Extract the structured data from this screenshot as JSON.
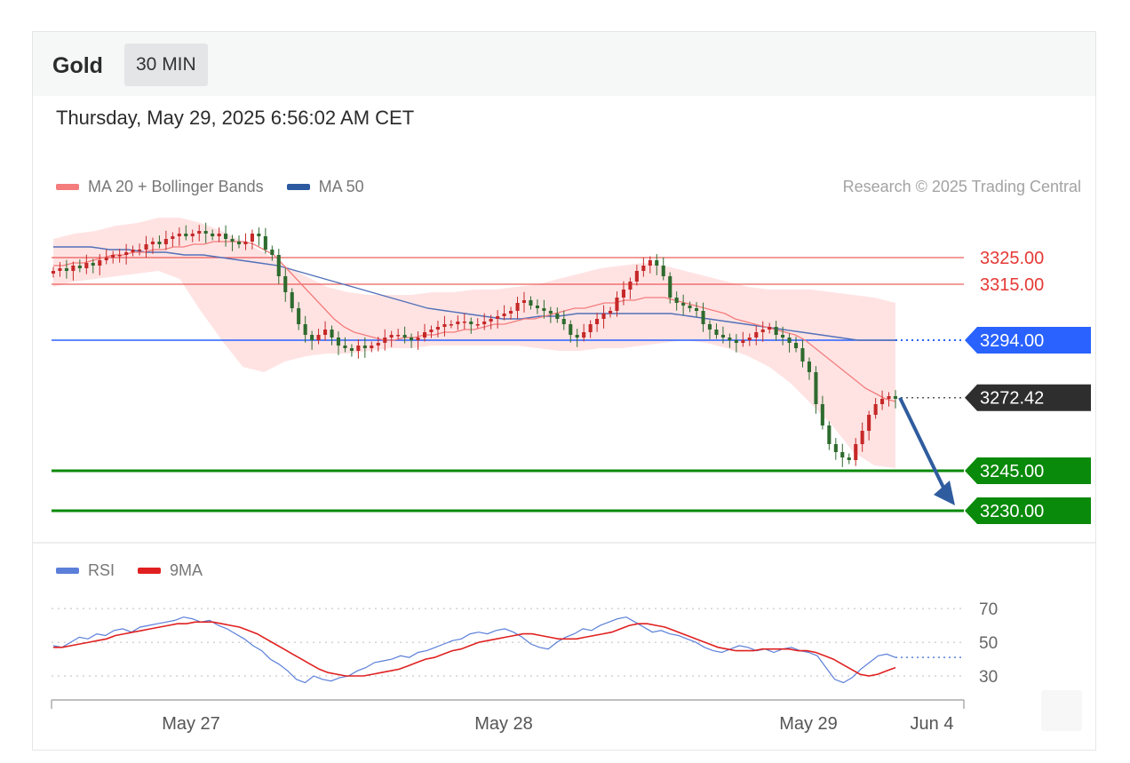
{
  "header": {
    "instrument": "Gold",
    "timeframe": "30 MIN"
  },
  "timestamp": "Thursday, May 29, 2025 6:56:02 AM CET",
  "legend": {
    "items": [
      {
        "label": "MA 20 + Bollinger Bands",
        "color": "#f47c7c"
      },
      {
        "label": "MA 50",
        "color": "#2c5aa0"
      }
    ]
  },
  "credit": "Research © 2025 Trading Central",
  "rsi_legend": {
    "items": [
      {
        "label": "RSI",
        "color": "#5b7fd8"
      },
      {
        "label": "9MA",
        "color": "#e02020"
      }
    ]
  },
  "colors": {
    "resistance": "#e53935",
    "pivot": "#2962ff",
    "support": "#0a8a0a",
    "last_price": "#2e2e2e",
    "bollinger_fill": "#ffd9d9",
    "ma20": "#f47c7c",
    "ma50": "#5270b8",
    "arrow": "#2f5c9e",
    "candle_up": "#c62828",
    "candle_down": "#2e6b2e"
  },
  "chart_data": [
    {
      "type": "candlestick",
      "instrument": "Gold",
      "timeframe": "30 MIN",
      "ylim": [
        3235,
        3340
      ],
      "x_tick_labels": [
        "May 27",
        "May 28",
        "May 29",
        "Jun 4"
      ],
      "levels": [
        {
          "label": "3325.00",
          "value": 3325.0,
          "kind": "resistance"
        },
        {
          "label": "3315.00",
          "value": 3315.0,
          "kind": "resistance"
        },
        {
          "label": "3294.00",
          "value": 3294.0,
          "kind": "pivot"
        },
        {
          "label": "3272.42",
          "value": 3272.42,
          "kind": "last"
        },
        {
          "label": "3245.00",
          "value": 3245.0,
          "kind": "support"
        },
        {
          "label": "3230.00",
          "value": 3230.0,
          "kind": "support"
        }
      ],
      "target_arrow": {
        "from": 3272.42,
        "to": 3232
      },
      "close": [
        3320,
        3321,
        3320,
        3322,
        3321,
        3323,
        3322,
        3324,
        3325,
        3326,
        3326,
        3327,
        3328,
        3328,
        3330,
        3331,
        3330,
        3332,
        3333,
        3334,
        3333,
        3334,
        3335,
        3334,
        3333,
        3334,
        3332,
        3331,
        3330,
        3331,
        3334,
        3333,
        3328,
        3326,
        3318,
        3312,
        3306,
        3300,
        3296,
        3294,
        3296,
        3298,
        3295,
        3292,
        3291,
        3290,
        3292,
        3291,
        3292,
        3293,
        3295,
        3296,
        3296,
        3295,
        3294,
        3295,
        3297,
        3298,
        3299,
        3300,
        3300,
        3301,
        3301,
        3300,
        3300,
        3301,
        3302,
        3303,
        3304,
        3305,
        3308,
        3309,
        3307,
        3306,
        3305,
        3304,
        3302,
        3300,
        3296,
        3295,
        3297,
        3300,
        3302,
        3304,
        3305,
        3310,
        3313,
        3316,
        3320,
        3322,
        3324,
        3322,
        3318,
        3310,
        3308,
        3307,
        3306,
        3305,
        3300,
        3298,
        3296,
        3295,
        3294,
        3293,
        3294,
        3295,
        3297,
        3298,
        3299,
        3296,
        3295,
        3293,
        3291,
        3286,
        3282,
        3270,
        3262,
        3255,
        3252,
        3250,
        3249,
        3255,
        3260,
        3266,
        3270,
        3272,
        3273,
        3272
      ],
      "ma20": [
        3322,
        3322,
        3323,
        3323,
        3324,
        3325,
        3326,
        3326,
        3327,
        3327,
        3328,
        3328,
        3329,
        3329,
        3330,
        3330,
        3331,
        3331,
        3331,
        3331,
        3330,
        3328,
        3326,
        3322,
        3318,
        3314,
        3310,
        3306,
        3302,
        3299,
        3297,
        3296,
        3295,
        3294,
        3294,
        3295,
        3295,
        3296,
        3296,
        3297,
        3297,
        3298,
        3298,
        3299,
        3300,
        3300,
        3301,
        3302,
        3302,
        3303,
        3304,
        3305,
        3306,
        3306,
        3307,
        3308,
        3308,
        3309,
        3309,
        3310,
        3310,
        3310,
        3309,
        3308,
        3307,
        3306,
        3305,
        3304,
        3302,
        3301,
        3300,
        3299,
        3298,
        3297,
        3296,
        3294,
        3291,
        3288,
        3285,
        3282,
        3279,
        3276,
        3274,
        3272,
        3271
      ],
      "ma50": [
        3329,
        3329,
        3329,
        3328,
        3328,
        3327,
        3327,
        3326,
        3326,
        3325,
        3324,
        3323,
        3322,
        3320,
        3318,
        3316,
        3314,
        3312,
        3310,
        3308,
        3306,
        3305,
        3304,
        3303,
        3302,
        3302,
        3303,
        3303,
        3304,
        3304,
        3304,
        3304,
        3304,
        3304,
        3303,
        3302,
        3301,
        3300,
        3299,
        3298,
        3297,
        3296,
        3295,
        3294,
        3294,
        3294
      ],
      "bb_upper": [
        3332,
        3334,
        3335,
        3337,
        3338,
        3340,
        3340,
        3338,
        3335,
        3331,
        3327,
        3322,
        3318,
        3314,
        3312,
        3311,
        3311,
        3311,
        3312,
        3312,
        3313,
        3313,
        3314,
        3315,
        3317,
        3319,
        3321,
        3322,
        3323,
        3322,
        3320,
        3318,
        3316,
        3314,
        3313,
        3313,
        3313,
        3312,
        3311,
        3310,
        3308
      ],
      "bb_lower": [
        3314,
        3316,
        3317,
        3318,
        3319,
        3320,
        3317,
        3305,
        3294,
        3284,
        3282,
        3286,
        3288,
        3289,
        3289,
        3290,
        3291,
        3291,
        3292,
        3292,
        3292,
        3292,
        3292,
        3291,
        3290,
        3290,
        3291,
        3291,
        3292,
        3293,
        3294,
        3293,
        3291,
        3288,
        3284,
        3278,
        3270,
        3262,
        3252,
        3247,
        3246
      ]
    },
    {
      "type": "line",
      "title": "RSI",
      "ylim": [
        20,
        78
      ],
      "y_ticks": [
        70,
        50,
        30
      ],
      "x_tick_labels": [
        "May 27",
        "May 28",
        "May 29",
        "Jun 4"
      ],
      "series": [
        {
          "name": "RSI",
          "color": "#5b7fd8",
          "values": [
            48,
            47,
            50,
            53,
            52,
            55,
            54,
            57,
            58,
            56,
            59,
            60,
            61,
            62,
            63,
            65,
            64,
            62,
            63,
            60,
            58,
            55,
            52,
            48,
            45,
            40,
            37,
            33,
            28,
            26,
            30,
            28,
            27,
            29,
            30,
            33,
            35,
            38,
            39,
            40,
            42,
            41,
            44,
            45,
            47,
            49,
            51,
            52,
            55,
            56,
            55,
            57,
            58,
            56,
            53,
            49,
            47,
            46,
            50,
            53,
            55,
            58,
            57,
            60,
            62,
            64,
            65,
            62,
            59,
            56,
            57,
            55,
            54,
            52,
            50,
            47,
            45,
            44,
            46,
            48,
            47,
            45,
            46,
            44,
            46,
            47,
            45,
            44,
            42,
            35,
            28,
            26,
            29,
            34,
            38,
            42,
            43,
            41
          ]
        },
        {
          "name": "9MA",
          "color": "#e02020",
          "values": [
            47,
            47,
            48,
            49,
            50,
            51,
            52,
            54,
            55,
            56,
            57,
            58,
            59,
            60,
            61,
            61,
            62,
            62,
            62,
            61,
            60,
            59,
            57,
            55,
            52,
            49,
            46,
            43,
            40,
            37,
            34,
            32,
            31,
            30,
            30,
            30,
            31,
            32,
            33,
            34,
            36,
            38,
            40,
            41,
            43,
            45,
            46,
            48,
            50,
            51,
            52,
            53,
            54,
            55,
            55,
            54,
            53,
            52,
            52,
            52,
            53,
            54,
            55,
            56,
            58,
            60,
            61,
            61,
            60,
            59,
            57,
            55,
            53,
            51,
            49,
            47,
            46,
            45,
            45,
            45,
            46,
            46,
            46,
            46,
            45,
            45,
            44,
            42,
            40,
            37,
            34,
            31,
            30,
            31,
            33,
            35
          ]
        }
      ]
    }
  ]
}
